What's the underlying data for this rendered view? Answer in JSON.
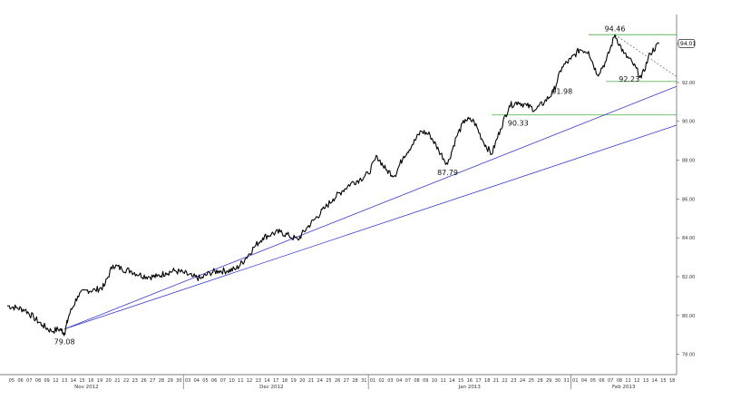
{
  "chart_data": {
    "type": "line",
    "title": "",
    "xlabel": "",
    "ylabel": "",
    "ylim": [
      77.0,
      95.5
    ],
    "grid": false,
    "y_ticks": [
      "78.00",
      "80.00",
      "82.00",
      "84.00",
      "86.00",
      "88.00",
      "90.00",
      "92.00",
      "94.00"
    ],
    "day_ticks": [
      "05",
      "06",
      "07",
      "08",
      "09",
      "12",
      "13",
      "14",
      "15",
      "16",
      "19",
      "20",
      "21",
      "22",
      "23",
      "26",
      "27",
      "28",
      "29",
      "30",
      "03",
      "04",
      "05",
      "06",
      "07",
      "10",
      "11",
      "12",
      "13",
      "14",
      "17",
      "18",
      "19",
      "20",
      "21",
      "24",
      "25",
      "26",
      "27",
      "28",
      "31",
      "01",
      "02",
      "03",
      "04",
      "07",
      "08",
      "09",
      "10",
      "11",
      "14",
      "15",
      "16",
      "17",
      "18",
      "21",
      "22",
      "23",
      "24",
      "25",
      "28",
      "29",
      "30",
      "31",
      "01",
      "04",
      "05",
      "06",
      "07",
      "08",
      "11",
      "12",
      "13",
      "14",
      "15",
      "18"
    ],
    "months": [
      {
        "label": "Nov 2012",
        "at": 9
      },
      {
        "label": "Dec 2012",
        "at": 30
      },
      {
        "label": "Jan 2013",
        "at": 52.5
      },
      {
        "label": "Feb 2013",
        "at": 70
      }
    ],
    "series": [
      {
        "values": [
          {
            "x": 0,
            "y": 80.5
          },
          {
            "x": 1,
            "y": 80.4
          },
          {
            "x": 2,
            "y": 80.3
          },
          {
            "x": 3,
            "y": 79.9
          },
          {
            "x": 4,
            "y": 79.5
          },
          {
            "x": 5,
            "y": 79.2
          },
          {
            "x": 6,
            "y": 79.3
          },
          {
            "x": 6.5,
            "y": 79.08
          },
          {
            "x": 7,
            "y": 80.0
          },
          {
            "x": 8,
            "y": 81.0
          },
          {
            "x": 9,
            "y": 81.3
          },
          {
            "x": 10,
            "y": 81.3
          },
          {
            "x": 11,
            "y": 81.5
          },
          {
            "x": 12,
            "y": 82.6
          },
          {
            "x": 13,
            "y": 82.4
          },
          {
            "x": 14,
            "y": 82.3
          },
          {
            "x": 15,
            "y": 82.1
          },
          {
            "x": 16,
            "y": 82.0
          },
          {
            "x": 17,
            "y": 82.0
          },
          {
            "x": 18,
            "y": 82.2
          },
          {
            "x": 19,
            "y": 82.3
          },
          {
            "x": 20,
            "y": 82.2
          },
          {
            "x": 21,
            "y": 82.0
          },
          {
            "x": 22,
            "y": 81.9
          },
          {
            "x": 23,
            "y": 82.2
          },
          {
            "x": 24,
            "y": 82.3
          },
          {
            "x": 25,
            "y": 82.3
          },
          {
            "x": 26,
            "y": 82.4
          },
          {
            "x": 27,
            "y": 82.9
          },
          {
            "x": 28,
            "y": 83.5
          },
          {
            "x": 29,
            "y": 84.0
          },
          {
            "x": 30,
            "y": 84.2
          },
          {
            "x": 31,
            "y": 84.3
          },
          {
            "x": 32,
            "y": 84.1
          },
          {
            "x": 33,
            "y": 83.9
          },
          {
            "x": 34,
            "y": 84.5
          },
          {
            "x": 35,
            "y": 85.0
          },
          {
            "x": 36,
            "y": 85.5
          },
          {
            "x": 37,
            "y": 86.0
          },
          {
            "x": 38,
            "y": 86.4
          },
          {
            "x": 39,
            "y": 86.8
          },
          {
            "x": 40,
            "y": 87.0
          },
          {
            "x": 41,
            "y": 87.3
          },
          {
            "x": 42,
            "y": 88.2
          },
          {
            "x": 43,
            "y": 87.5
          },
          {
            "x": 44,
            "y": 87.2
          },
          {
            "x": 45,
            "y": 88.2
          },
          {
            "x": 46,
            "y": 88.8
          },
          {
            "x": 47,
            "y": 89.5
          },
          {
            "x": 48,
            "y": 89.3
          },
          {
            "x": 49,
            "y": 88.5
          },
          {
            "x": 50,
            "y": 87.79
          },
          {
            "x": 51,
            "y": 89.2
          },
          {
            "x": 52,
            "y": 90.1
          },
          {
            "x": 53,
            "y": 90.0
          },
          {
            "x": 54,
            "y": 89.0
          },
          {
            "x": 55,
            "y": 88.3
          },
          {
            "x": 56,
            "y": 89.6
          },
          {
            "x": 57,
            "y": 90.8
          },
          {
            "x": 58,
            "y": 91.0
          },
          {
            "x": 59,
            "y": 90.8
          },
          {
            "x": 60,
            "y": 90.6
          },
          {
            "x": 61,
            "y": 91.0
          },
          {
            "x": 62,
            "y": 91.5
          },
          {
            "x": 63,
            "y": 92.8
          },
          {
            "x": 64,
            "y": 93.2
          },
          {
            "x": 65,
            "y": 93.7
          },
          {
            "x": 66,
            "y": 93.6
          },
          {
            "x": 67,
            "y": 92.4
          },
          {
            "x": 68,
            "y": 93.1
          },
          {
            "x": 69,
            "y": 94.46
          },
          {
            "x": 70,
            "y": 93.5
          },
          {
            "x": 71,
            "y": 93.0
          },
          {
            "x": 72,
            "y": 92.23
          },
          {
            "x": 73,
            "y": 93.5
          },
          {
            "x": 74,
            "y": 94.0
          }
        ]
      }
    ],
    "last_value": "94.01",
    "annotations": [
      {
        "text": "79.08",
        "x": 6.5,
        "y": 79.08,
        "pos": "below"
      },
      {
        "text": "87.79",
        "x": 50,
        "y": 87.79,
        "pos": "below"
      },
      {
        "text": "90.33",
        "x": 58,
        "y": 90.33,
        "pos": "below"
      },
      {
        "text": "91.98",
        "x": 63,
        "y": 91.98,
        "pos": "below"
      },
      {
        "text": "94.46",
        "x": 69,
        "y": 94.46,
        "pos": "above"
      },
      {
        "text": "92.23",
        "x": 72,
        "y": 92.23,
        "pos": "left"
      }
    ],
    "trendlines": [
      {
        "color": "#3b3bd0",
        "from": {
          "x": 6.5,
          "y": 79.3
        },
        "to": {
          "x": 76,
          "y": 91.8
        }
      },
      {
        "color": "#3b3bd0",
        "from": {
          "x": 6.5,
          "y": 79.3
        },
        "to": {
          "x": 76,
          "y": 89.8
        }
      }
    ],
    "levels": [
      {
        "color": "#5fb85f",
        "y": 90.33,
        "x_from": 55,
        "x_to": 76
      },
      {
        "color": "#5fb85f",
        "y": 92.05,
        "x_from": 68,
        "x_to": 76
      },
      {
        "color": "#5fb85f",
        "y": 94.46,
        "x_from": 66,
        "x_to": 76
      }
    ],
    "dashed_lines": [
      {
        "color": "#555555",
        "from": {
          "x": 69,
          "y": 94.46
        },
        "to": {
          "x": 76,
          "y": 92.3
        }
      }
    ]
  }
}
